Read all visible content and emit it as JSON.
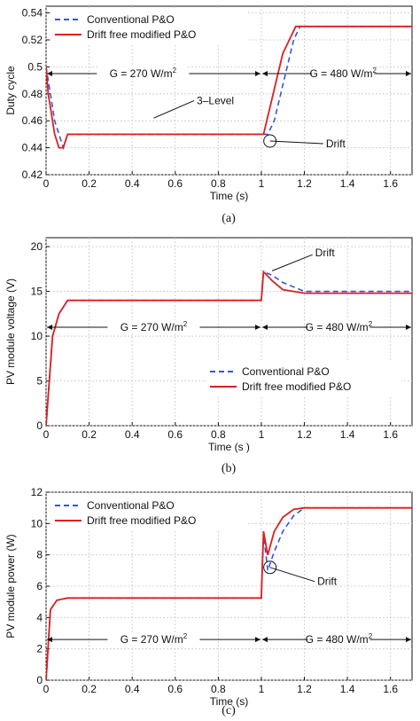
{
  "colors": {
    "conventional": "#3355dd",
    "drift_free": "#dd1f1f",
    "grid": "#c8c8c8",
    "axis": "#111111"
  },
  "chart_data": [
    {
      "type": "line",
      "caption": "(a)",
      "xlabel": "Time (s)",
      "ylabel": "Duty cycle",
      "xlim": [
        0,
        1.7
      ],
      "ylim": [
        0.42,
        0.545
      ],
      "xticks": [
        "0",
        "0.2",
        "0.4",
        "0.6",
        "0.8",
        "1",
        "1.2",
        "1.4",
        "1.6"
      ],
      "yticks": [
        "0.42",
        "0.44",
        "0.46",
        "0.48",
        "0.5",
        "0.52",
        "0.54"
      ],
      "grid": true,
      "legend": "top-left",
      "series": [
        {
          "name": "Conventional P&O",
          "style": "dashed",
          "color_key": "conventional",
          "x": [
            0,
            0.01,
            0.02,
            0.03,
            0.04,
            0.06,
            0.08,
            0.1,
            1.03,
            1.06,
            1.09,
            1.12,
            1.15,
            1.18,
            1.2,
            1.7
          ],
          "y": [
            0.5,
            0.49,
            0.48,
            0.47,
            0.46,
            0.45,
            0.44,
            0.45,
            0.45,
            0.46,
            0.48,
            0.5,
            0.52,
            0.53,
            0.53,
            0.53
          ]
        },
        {
          "name": "Drift free modified P&O",
          "style": "solid",
          "color_key": "drift_free",
          "x": [
            0,
            0.01,
            0.02,
            0.03,
            0.04,
            0.06,
            0.08,
            0.1,
            1.01,
            1.04,
            1.07,
            1.1,
            1.13,
            1.16,
            1.2,
            1.7
          ],
          "y": [
            0.5,
            0.48,
            0.47,
            0.46,
            0.45,
            0.44,
            0.44,
            0.45,
            0.45,
            0.47,
            0.49,
            0.51,
            0.52,
            0.53,
            0.53,
            0.53
          ]
        }
      ],
      "annotations": [
        {
          "text": "G = 270 W/m",
          "sup": "2",
          "x": 0.45,
          "y": 0.495
        },
        {
          "text": "G = 480 W/m",
          "sup": "2",
          "x": 1.38,
          "y": 0.495
        },
        {
          "text": "3–Level",
          "x": 0.7,
          "y": 0.475
        },
        {
          "text": "Drift",
          "x": 1.3,
          "y": 0.443
        }
      ]
    },
    {
      "type": "line",
      "caption": "(b)",
      "xlabel": "Time (s  )",
      "ylabel": "PV module voltage (V)",
      "xlim": [
        0,
        1.7
      ],
      "ylim": [
        0,
        21
      ],
      "xticks": [
        "0",
        "0.2",
        "0.4",
        "0.6",
        "0.8",
        "1",
        "1.2",
        "1.4",
        "1.6"
      ],
      "yticks": [
        "0",
        "5",
        "10",
        "15",
        "20"
      ],
      "grid": true,
      "legend": "bottom-right",
      "series": [
        {
          "name": "Conventional P&O",
          "style": "dashed",
          "color_key": "conventional",
          "x": [
            0,
            0.03,
            0.06,
            0.1,
            0.2,
            0.6,
            1.0,
            1.01,
            1.05,
            1.1,
            1.2,
            1.4,
            1.7
          ],
          "y": [
            0,
            10,
            12.5,
            14,
            14,
            14,
            14,
            17.2,
            16.8,
            16,
            15,
            15,
            15
          ]
        },
        {
          "name": "Drift free modified P&O",
          "style": "solid",
          "color_key": "drift_free",
          "x": [
            0,
            0.03,
            0.06,
            0.1,
            0.2,
            0.6,
            1.0,
            1.01,
            1.05,
            1.1,
            1.2,
            1.4,
            1.7
          ],
          "y": [
            0,
            10,
            12.5,
            14,
            14,
            14,
            14,
            17.2,
            16.2,
            15.2,
            14.8,
            14.8,
            14.8
          ]
        }
      ],
      "annotations": [
        {
          "text": "G = 270 W/m",
          "sup": "2",
          "x": 0.5,
          "y": 11
        },
        {
          "text": "G = 480 W/m",
          "sup": "2",
          "x": 1.36,
          "y": 11
        },
        {
          "text": "Drift",
          "x": 1.25,
          "y": 19.3
        }
      ]
    },
    {
      "type": "line",
      "caption": "(c)",
      "xlabel": "Time (s)",
      "ylabel": "PV module power (W)",
      "xlim": [
        0,
        1.7
      ],
      "ylim": [
        0,
        12
      ],
      "xticks": [
        "0",
        "0.2",
        "0.4",
        "0.6",
        "0.8",
        "1",
        "1.2",
        "1.4",
        "1.6"
      ],
      "yticks": [
        "0",
        "2",
        "4",
        "6",
        "8",
        "10",
        "12"
      ],
      "grid": true,
      "legend": "top-left",
      "series": [
        {
          "name": "Conventional P&O",
          "style": "dashed",
          "color_key": "conventional",
          "x": [
            0,
            0.02,
            0.05,
            0.1,
            1.0,
            1.01,
            1.03,
            1.06,
            1.1,
            1.15,
            1.2,
            1.7
          ],
          "y": [
            0,
            4.5,
            5.1,
            5.25,
            5.25,
            9.3,
            7,
            8.2,
            9.5,
            10.5,
            11,
            11
          ]
        },
        {
          "name": "Drift free modified P&O",
          "style": "solid",
          "color_key": "drift_free",
          "x": [
            0,
            0.02,
            0.05,
            0.1,
            1.0,
            1.01,
            1.03,
            1.06,
            1.1,
            1.15,
            1.2,
            1.7
          ],
          "y": [
            0,
            4.5,
            5.1,
            5.25,
            5.25,
            9.5,
            8,
            9.5,
            10.4,
            10.9,
            11,
            11
          ]
        }
      ],
      "annotations": [
        {
          "text": "G = 270 W/m",
          "sup": "2",
          "x": 0.5,
          "y": 2.6
        },
        {
          "text": "G = 480 W/m",
          "sup": "2",
          "x": 1.36,
          "y": 2.6
        },
        {
          "text": "Drift",
          "x": 1.26,
          "y": 6.3
        }
      ]
    }
  ]
}
